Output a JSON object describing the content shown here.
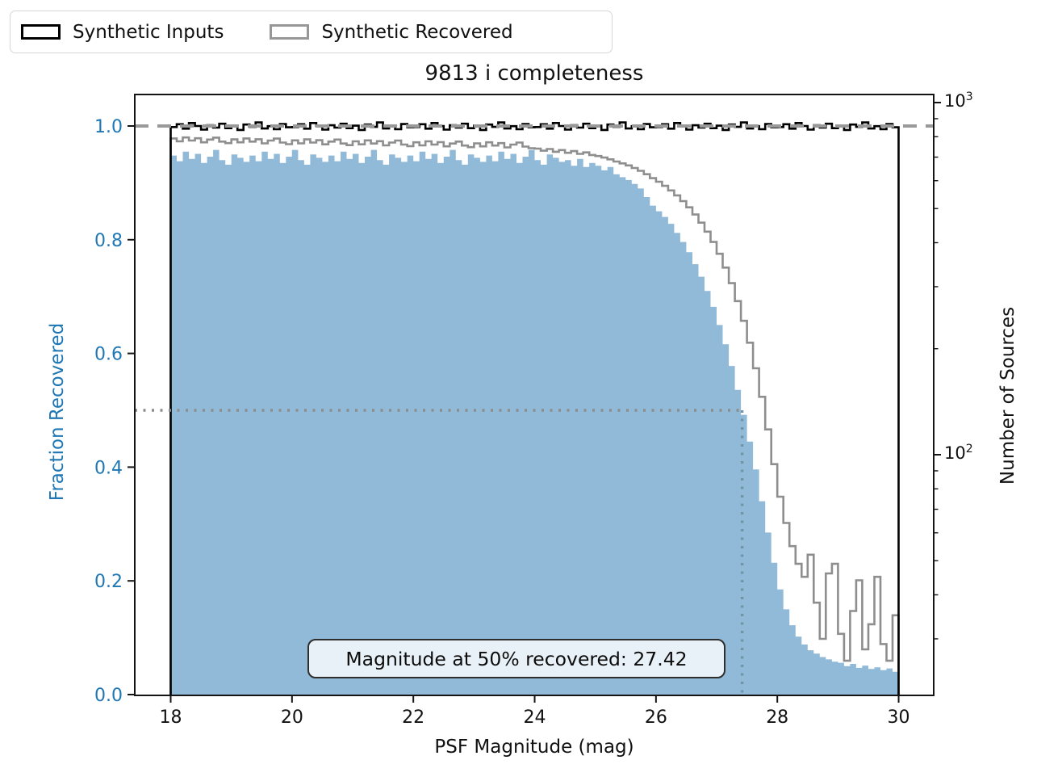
{
  "legend": {
    "items": [
      {
        "label": "Synthetic Inputs",
        "swatch_color": "#000000"
      },
      {
        "label": "Synthetic Recovered",
        "swatch_color": "#979797"
      }
    ]
  },
  "chart_data": {
    "type": "bar",
    "subtype": "histogram-with-step-lines",
    "title": "9813 i completeness",
    "xlabel": "PSF Magnitude (mag)",
    "ylabel_left": "Fraction Recovered",
    "ylabel_right": "Number of Sources",
    "x_ticks": [
      18,
      20,
      22,
      24,
      26,
      28,
      30
    ],
    "x_range": [
      17.4,
      30.6
    ],
    "y_left_ticks": [
      "0.0",
      "0.2",
      "0.4",
      "0.6",
      "0.8",
      "1.0"
    ],
    "y_left_range": [
      0.0,
      1.057
    ],
    "y_right_scale": "log",
    "y_right_ticks": [
      {
        "base": "10",
        "exp": "3",
        "value": 1000
      },
      {
        "base": "10",
        "exp": "2",
        "value": 100
      }
    ],
    "y_right_range": [
      20.7,
      1054
    ],
    "bin_start": 18.0,
    "bin_width": 0.1,
    "n_bins": 120,
    "reference_lines": {
      "dashed_fraction": 1.0,
      "dotted_fraction": 0.5,
      "dotted_magnitude": 27.42
    },
    "annotation": "Magnitude at 50% recovered: 27.42",
    "magnitude_at_50pct": 27.42,
    "colors": {
      "inputs_line": "#000000",
      "recovered_line": "#8e8e8e",
      "fraction_fill": "#90bad8",
      "left_axis_accent": "#1f77b4",
      "dashed_line": "#999999",
      "dotted_line": "#8c8c8c",
      "dotted_line_vertical": "#6f94a8",
      "annotation_fill": "#e9f1f8"
    },
    "series": [
      {
        "name": "Synthetic Inputs",
        "axis": "right",
        "style": "step-line",
        "color": "#000000",
        "values": [
          852,
          868,
          843,
          875,
          858,
          838,
          862,
          849,
          871,
          846,
          860,
          836,
          866,
          853,
          878,
          844,
          857,
          840,
          869,
          851,
          852,
          868,
          843,
          875,
          858,
          838,
          862,
          849,
          871,
          846,
          860,
          836,
          866,
          853,
          878,
          844,
          857,
          840,
          869,
          851,
          852,
          868,
          843,
          875,
          858,
          838,
          862,
          849,
          871,
          846,
          860,
          836,
          866,
          853,
          878,
          844,
          857,
          840,
          869,
          851,
          852,
          868,
          843,
          875,
          858,
          838,
          862,
          849,
          871,
          846,
          860,
          836,
          866,
          853,
          878,
          844,
          857,
          840,
          869,
          851,
          852,
          868,
          843,
          875,
          858,
          838,
          862,
          849,
          871,
          846,
          860,
          836,
          866,
          853,
          878,
          844,
          857,
          840,
          869,
          851,
          852,
          868,
          843,
          875,
          858,
          838,
          862,
          849,
          871,
          846,
          860,
          836,
          866,
          853,
          878,
          844,
          857,
          840,
          869,
          851
        ]
      },
      {
        "name": "Synthetic Recovered",
        "axis": "right",
        "style": "step-line",
        "color": "#8e8e8e",
        "values": [
          791,
          776,
          796,
          780,
          792,
          771,
          785,
          795,
          775,
          767,
          786,
          771,
          791,
          775,
          787,
          766,
          780,
          790,
          770,
          762,
          781,
          766,
          786,
          770,
          782,
          761,
          775,
          785,
          765,
          757,
          776,
          761,
          781,
          765,
          777,
          756,
          770,
          780,
          760,
          752,
          771,
          756,
          776,
          760,
          772,
          751,
          765,
          775,
          755,
          747,
          766,
          751,
          771,
          755,
          767,
          746,
          760,
          770,
          750,
          742,
          740,
          730,
          738,
          725,
          733,
          720,
          728,
          715,
          722,
          710,
          705,
          698,
          690,
          680,
          672,
          663,
          652,
          640,
          626,
          610,
          596,
          580,
          563,
          545,
          525,
          504,
          481,
          456,
          430,
          402,
          372,
          340,
          307,
          273,
          240,
          208,
          176,
          146,
          118,
          94,
          76,
          64,
          55,
          49,
          45,
          52,
          38,
          30,
          46,
          49,
          31,
          26,
          36,
          44,
          28,
          33,
          45,
          29,
          26,
          35
        ]
      },
      {
        "name": "Fraction Recovered",
        "axis": "left",
        "style": "filled-bars",
        "color": "#90bad8",
        "values": [
          0.948,
          0.938,
          0.955,
          0.942,
          0.951,
          0.935,
          0.946,
          0.958,
          0.94,
          0.932,
          0.95,
          0.944,
          0.937,
          0.948,
          0.938,
          0.955,
          0.942,
          0.951,
          0.935,
          0.946,
          0.958,
          0.94,
          0.932,
          0.95,
          0.944,
          0.937,
          0.948,
          0.938,
          0.955,
          0.942,
          0.951,
          0.935,
          0.946,
          0.958,
          0.94,
          0.932,
          0.95,
          0.944,
          0.937,
          0.948,
          0.938,
          0.955,
          0.942,
          0.951,
          0.935,
          0.946,
          0.958,
          0.94,
          0.932,
          0.95,
          0.944,
          0.937,
          0.948,
          0.938,
          0.955,
          0.942,
          0.951,
          0.935,
          0.946,
          0.958,
          0.94,
          0.932,
          0.95,
          0.944,
          0.937,
          0.94,
          0.93,
          0.942,
          0.928,
          0.935,
          0.93,
          0.922,
          0.928,
          0.915,
          0.91,
          0.905,
          0.898,
          0.89,
          0.875,
          0.86,
          0.85,
          0.84,
          0.828,
          0.812,
          0.796,
          0.778,
          0.757,
          0.735,
          0.71,
          0.682,
          0.65,
          0.616,
          0.578,
          0.536,
          0.492,
          0.445,
          0.396,
          0.34,
          0.285,
          0.232,
          0.185,
          0.15,
          0.122,
          0.102,
          0.088,
          0.078,
          0.072,
          0.066,
          0.062,
          0.058,
          0.056,
          0.05,
          0.054,
          0.047,
          0.051,
          0.045,
          0.048,
          0.043,
          0.046,
          0.04
        ]
      }
    ]
  }
}
